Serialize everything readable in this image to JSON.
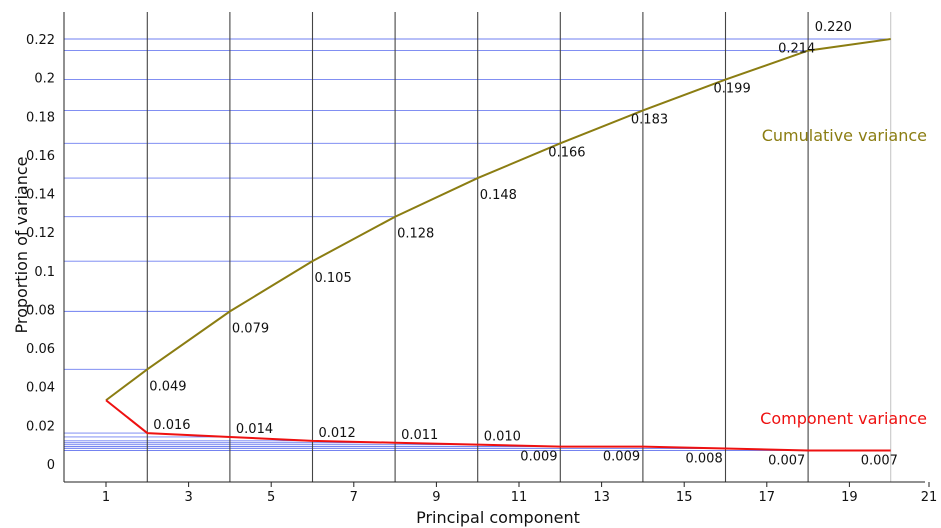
{
  "chart_data": {
    "type": "line",
    "xlabel": "Principal component",
    "ylabel": "Proportion of variance",
    "xlim": [
      0,
      21
    ],
    "ylim": [
      0,
      0.23
    ],
    "x_ticks": [
      "1",
      "3",
      "5",
      "7",
      "9",
      "11",
      "13",
      "15",
      "17",
      "19",
      "21"
    ],
    "y_ticks": [
      "0",
      "0.02",
      "0.04",
      "0.06",
      "0.08",
      "0.1",
      "0.12",
      "0.14",
      "0.16",
      "0.18",
      "0.2",
      "0.22"
    ],
    "grid": true,
    "series": [
      {
        "name": "Cumulative variance",
        "color": "#8b7d12",
        "x": [
          1,
          2,
          4,
          6,
          8,
          10,
          12,
          14,
          16,
          18,
          20
        ],
        "y": [
          0.033,
          0.049,
          0.079,
          0.105,
          0.128,
          0.148,
          0.166,
          0.183,
          0.199,
          0.214,
          0.22
        ],
        "point_labels": [
          "",
          "0.049",
          "0.079",
          "0.105",
          "0.128",
          "0.148",
          "0.166",
          "0.183",
          "0.199",
          "0.214",
          "0.220"
        ]
      },
      {
        "name": "Component variance",
        "color": "#ee1111",
        "x": [
          1,
          2,
          4,
          6,
          8,
          10,
          12,
          14,
          16,
          18,
          20
        ],
        "y": [
          0.033,
          0.016,
          0.014,
          0.012,
          0.011,
          0.01,
          0.009,
          0.009,
          0.008,
          0.007,
          0.007
        ],
        "point_labels": [
          "",
          "0.016",
          "0.014",
          "0.012",
          "0.011",
          "0.010",
          "0.009",
          "0.009",
          "0.008",
          "0.007",
          "0.007"
        ]
      }
    ]
  }
}
